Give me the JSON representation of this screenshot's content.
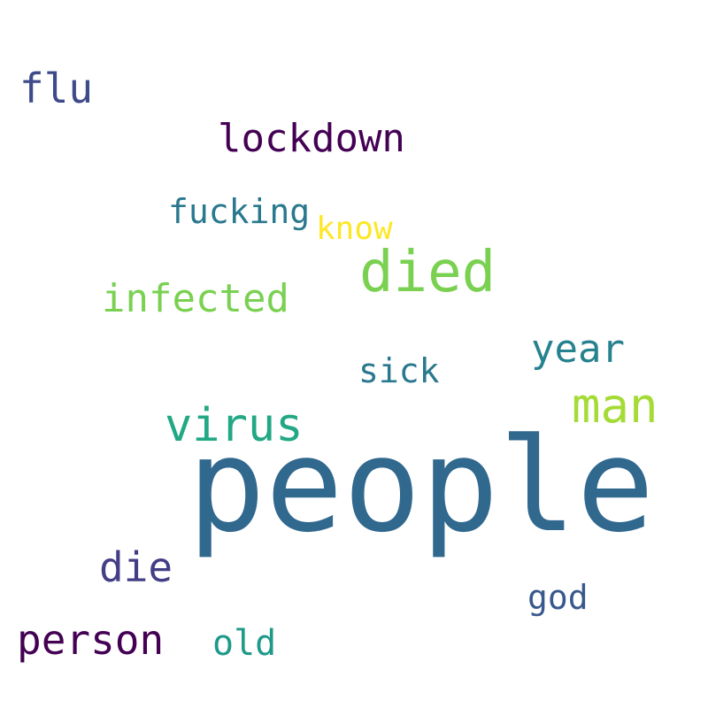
{
  "words": [
    {
      "id": "people",
      "text": "people",
      "color": "#31688e"
    },
    {
      "id": "died",
      "text": "died",
      "color": "#7ad151"
    },
    {
      "id": "man",
      "text": "man",
      "color": "#a5db36"
    },
    {
      "id": "virus",
      "text": "virus",
      "color": "#22a884"
    },
    {
      "id": "infected",
      "text": "infected",
      "color": "#7ad151"
    },
    {
      "id": "lockdown",
      "text": "lockdown",
      "color": "#440154"
    },
    {
      "id": "flu",
      "text": "flu",
      "color": "#3e4a89"
    },
    {
      "id": "person",
      "text": "person",
      "color": "#440154"
    },
    {
      "id": "year",
      "text": "year",
      "color": "#26828e"
    },
    {
      "id": "die",
      "text": "die",
      "color": "#433e85"
    },
    {
      "id": "fucking",
      "text": "fucking",
      "color": "#2a788e"
    },
    {
      "id": "sick",
      "text": "sick",
      "color": "#2a788e"
    },
    {
      "id": "old",
      "text": "old",
      "color": "#1f9a8a"
    },
    {
      "id": "god",
      "text": "god",
      "color": "#38598c"
    },
    {
      "id": "know",
      "text": "know",
      "color": "#fde725"
    }
  ]
}
